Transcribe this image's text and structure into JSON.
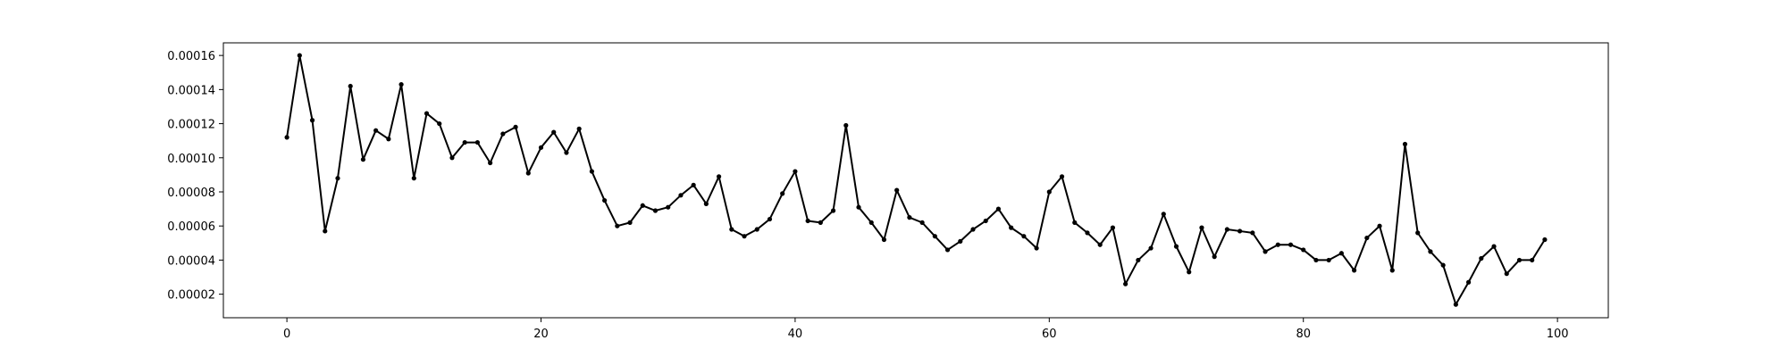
{
  "chart_data": {
    "type": "line",
    "title": "",
    "xlabel": "",
    "ylabel": "",
    "xlim": [
      -5,
      104
    ],
    "ylim": [
      6.2e-06,
      0.0001674
    ],
    "grid": false,
    "legend": "none",
    "line_color": "#000000",
    "marker": "dot",
    "x_ticks": [
      0,
      20,
      40,
      60,
      80,
      100
    ],
    "x_tick_labels": [
      "0",
      "20",
      "40",
      "60",
      "80",
      "100"
    ],
    "y_ticks": [
      2e-05,
      4e-05,
      6e-05,
      8e-05,
      0.0001,
      0.00012,
      0.00014,
      0.00016
    ],
    "y_tick_labels": [
      "0.00002",
      "0.00004",
      "0.00006",
      "0.00008",
      "0.00010",
      "0.00012",
      "0.00014",
      "0.00016"
    ],
    "series": [
      {
        "x": [
          0,
          1,
          2,
          3,
          4,
          5,
          6,
          7,
          8,
          9,
          10,
          11,
          12,
          13,
          14,
          15,
          16,
          17,
          18,
          19,
          20,
          21,
          22,
          23,
          24,
          25,
          26,
          27,
          28,
          29,
          30,
          31,
          32,
          33,
          34,
          35,
          36,
          37,
          38,
          39,
          40,
          41,
          42,
          43,
          44,
          45,
          46,
          47,
          48,
          49,
          50,
          51,
          52,
          53,
          54,
          55,
          56,
          57,
          58,
          59,
          60,
          61,
          62,
          63,
          64,
          65,
          66,
          67,
          68,
          69,
          70,
          71,
          72,
          73,
          74,
          75,
          76,
          77,
          78,
          79,
          80,
          81,
          82,
          83,
          84,
          85,
          86,
          87,
          88,
          89,
          90,
          91,
          92,
          93,
          94,
          95,
          96,
          97,
          98,
          99
        ],
        "y": [
          0.000112,
          0.00016,
          0.000122,
          5.7e-05,
          8.8e-05,
          0.000142,
          9.9e-05,
          0.000116,
          0.000111,
          0.000143,
          8.8e-05,
          0.000126,
          0.00012,
          0.0001,
          0.000109,
          0.000109,
          9.7e-05,
          0.000114,
          0.000118,
          9.1e-05,
          0.000106,
          0.000115,
          0.000103,
          0.000117,
          9.2e-05,
          7.5e-05,
          6e-05,
          6.2e-05,
          7.2e-05,
          6.9e-05,
          7.1e-05,
          7.8e-05,
          8.4e-05,
          7.3e-05,
          8.9e-05,
          5.8e-05,
          5.4e-05,
          5.8e-05,
          6.4e-05,
          7.9e-05,
          9.2e-05,
          6.3e-05,
          6.2e-05,
          6.9e-05,
          0.000119,
          7.1e-05,
          6.2e-05,
          5.2e-05,
          8.1e-05,
          6.5e-05,
          6.2e-05,
          5.4e-05,
          4.6e-05,
          5.1e-05,
          5.8e-05,
          6.3e-05,
          7e-05,
          5.9e-05,
          5.4e-05,
          4.7e-05,
          8e-05,
          8.9e-05,
          6.2e-05,
          5.6e-05,
          4.9e-05,
          5.9e-05,
          2.6e-05,
          4e-05,
          4.7e-05,
          6.7e-05,
          4.8e-05,
          3.3e-05,
          5.9e-05,
          4.2e-05,
          5.8e-05,
          5.7e-05,
          5.6e-05,
          4.5e-05,
          4.9e-05,
          4.9e-05,
          4.6e-05,
          4e-05,
          4e-05,
          4.4e-05,
          3.4e-05,
          5.3e-05,
          6e-05,
          3.4e-05,
          0.000108,
          5.6e-05,
          4.5e-05,
          3.7e-05,
          1.4e-05,
          2.7e-05,
          4.1e-05,
          4.8e-05,
          3.2e-05,
          4e-05,
          4e-05,
          5.2e-05
        ]
      }
    ]
  }
}
